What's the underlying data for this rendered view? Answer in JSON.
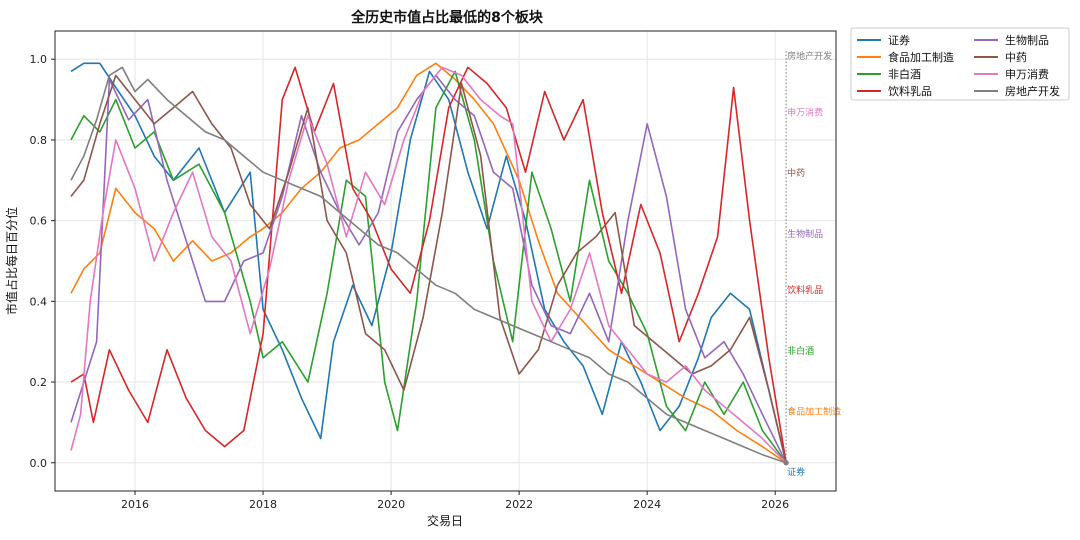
{
  "chart_data": {
    "type": "line",
    "title": "全历史市值占比最低的8个板块",
    "xlabel": "交易日",
    "ylabel": "市值占比每日百分位",
    "xlim": [
      2014.75,
      2026.95
    ],
    "ylim": [
      -0.07,
      1.07
    ],
    "x_ticks": [
      2016,
      2018,
      2020,
      2022,
      2024,
      2026
    ],
    "x_tick_labels": [
      "2016",
      "2018",
      "2020",
      "2022",
      "2024",
      "2026"
    ],
    "y_ticks": [
      0.0,
      0.2,
      0.4,
      0.6,
      0.8,
      1.0
    ],
    "y_tick_labels": [
      "0.0",
      "0.2",
      "0.4",
      "0.6",
      "0.8",
      "1.0"
    ],
    "grid": true,
    "legend_position": "outside-top-right",
    "end_annotation_x": 2026.17,
    "series": [
      {
        "name": "证券",
        "color": "#1f77b4",
        "end_label": "证券",
        "end_label_y": -0.02,
        "x": [
          2015.0,
          2015.2,
          2015.45,
          2015.7,
          2016.0,
          2016.3,
          2016.6,
          2017.0,
          2017.4,
          2017.8,
          2018.0,
          2018.3,
          2018.6,
          2018.9,
          2019.1,
          2019.4,
          2019.7,
          2020.0,
          2020.3,
          2020.6,
          2020.9,
          2021.2,
          2021.5,
          2021.8,
          2022.1,
          2022.4,
          2022.7,
          2023.0,
          2023.3,
          2023.6,
          2023.9,
          2024.2,
          2024.5,
          2024.8,
          2025.0,
          2025.3,
          2025.6,
          2025.9,
          2026.17
        ],
        "y": [
          0.97,
          0.99,
          0.99,
          0.93,
          0.86,
          0.76,
          0.7,
          0.78,
          0.62,
          0.72,
          0.38,
          0.28,
          0.16,
          0.06,
          0.3,
          0.44,
          0.34,
          0.52,
          0.8,
          0.97,
          0.9,
          0.72,
          0.58,
          0.76,
          0.6,
          0.38,
          0.3,
          0.24,
          0.12,
          0.3,
          0.2,
          0.08,
          0.14,
          0.26,
          0.36,
          0.42,
          0.38,
          0.18,
          0.0
        ]
      },
      {
        "name": "食品加工制造",
        "color": "#ff7f0e",
        "end_label": "食品加工制造",
        "end_label_y": 0.13,
        "x": [
          2015.0,
          2015.2,
          2015.45,
          2015.7,
          2016.0,
          2016.3,
          2016.6,
          2016.9,
          2017.2,
          2017.5,
          2017.8,
          2018.0,
          2018.3,
          2018.6,
          2018.9,
          2019.2,
          2019.5,
          2019.8,
          2020.1,
          2020.4,
          2020.7,
          2021.0,
          2021.3,
          2021.6,
          2022.0,
          2022.3,
          2022.6,
          2023.0,
          2023.4,
          2023.8,
          2024.2,
          2024.6,
          2025.0,
          2025.4,
          2025.8,
          2026.17
        ],
        "y": [
          0.42,
          0.48,
          0.52,
          0.68,
          0.62,
          0.58,
          0.5,
          0.55,
          0.5,
          0.52,
          0.56,
          0.58,
          0.62,
          0.68,
          0.72,
          0.78,
          0.8,
          0.84,
          0.88,
          0.96,
          0.99,
          0.95,
          0.9,
          0.84,
          0.7,
          0.55,
          0.42,
          0.35,
          0.28,
          0.24,
          0.2,
          0.16,
          0.13,
          0.08,
          0.04,
          0.0
        ]
      },
      {
        "name": "非白酒",
        "color": "#2ca02c",
        "end_label": "非白酒",
        "end_label_y": 0.28,
        "x": [
          2015.0,
          2015.2,
          2015.45,
          2015.7,
          2016.0,
          2016.3,
          2016.6,
          2017.0,
          2017.4,
          2017.8,
          2018.0,
          2018.3,
          2018.7,
          2019.0,
          2019.3,
          2019.6,
          2019.9,
          2020.1,
          2020.4,
          2020.7,
          2021.0,
          2021.3,
          2021.6,
          2021.9,
          2022.2,
          2022.5,
          2022.8,
          2023.1,
          2023.4,
          2023.7,
          2024.0,
          2024.3,
          2024.6,
          2024.9,
          2025.2,
          2025.5,
          2025.8,
          2026.17
        ],
        "y": [
          0.8,
          0.86,
          0.82,
          0.9,
          0.78,
          0.82,
          0.7,
          0.74,
          0.62,
          0.4,
          0.26,
          0.3,
          0.2,
          0.42,
          0.7,
          0.66,
          0.2,
          0.08,
          0.4,
          0.88,
          0.97,
          0.8,
          0.5,
          0.3,
          0.72,
          0.58,
          0.4,
          0.7,
          0.5,
          0.42,
          0.32,
          0.14,
          0.08,
          0.2,
          0.12,
          0.2,
          0.08,
          0.0
        ]
      },
      {
        "name": "饮料乳品",
        "color": "#d62728",
        "end_label": "饮料乳品",
        "end_label_y": 0.43,
        "x": [
          2015.0,
          2015.2,
          2015.35,
          2015.6,
          2015.9,
          2016.2,
          2016.5,
          2016.8,
          2017.1,
          2017.4,
          2017.7,
          2018.0,
          2018.3,
          2018.5,
          2018.8,
          2019.1,
          2019.4,
          2019.7,
          2020.0,
          2020.3,
          2020.6,
          2020.9,
          2021.2,
          2021.5,
          2021.8,
          2022.1,
          2022.4,
          2022.7,
          2023.0,
          2023.3,
          2023.6,
          2023.9,
          2024.2,
          2024.5,
          2024.8,
          2025.1,
          2025.35,
          2025.6,
          2025.9,
          2026.17
        ],
        "y": [
          0.2,
          0.22,
          0.1,
          0.28,
          0.18,
          0.1,
          0.28,
          0.16,
          0.08,
          0.04,
          0.08,
          0.32,
          0.9,
          0.98,
          0.82,
          0.94,
          0.68,
          0.6,
          0.48,
          0.42,
          0.6,
          0.88,
          0.98,
          0.94,
          0.88,
          0.72,
          0.92,
          0.8,
          0.9,
          0.62,
          0.42,
          0.64,
          0.52,
          0.3,
          0.42,
          0.56,
          0.93,
          0.6,
          0.26,
          0.0
        ]
      },
      {
        "name": "生物制品",
        "color": "#9467bd",
        "end_label": "生物制品",
        "end_label_y": 0.57,
        "x": [
          2015.0,
          2015.2,
          2015.4,
          2015.6,
          2015.9,
          2016.2,
          2016.5,
          2016.8,
          2017.1,
          2017.4,
          2017.7,
          2018.0,
          2018.3,
          2018.6,
          2018.9,
          2019.2,
          2019.5,
          2019.8,
          2020.1,
          2020.4,
          2020.7,
          2021.0,
          2021.3,
          2021.6,
          2021.9,
          2022.2,
          2022.5,
          2022.8,
          2023.1,
          2023.4,
          2023.7,
          2024.0,
          2024.3,
          2024.6,
          2024.9,
          2025.2,
          2025.5,
          2025.8,
          2026.17
        ],
        "y": [
          0.1,
          0.2,
          0.3,
          0.95,
          0.85,
          0.9,
          0.7,
          0.55,
          0.4,
          0.4,
          0.5,
          0.52,
          0.66,
          0.86,
          0.72,
          0.62,
          0.54,
          0.62,
          0.82,
          0.9,
          0.96,
          0.9,
          0.86,
          0.72,
          0.68,
          0.44,
          0.34,
          0.32,
          0.42,
          0.3,
          0.6,
          0.84,
          0.66,
          0.38,
          0.26,
          0.3,
          0.22,
          0.12,
          0.0
        ]
      },
      {
        "name": "中药",
        "color": "#8c564b",
        "end_label": "中药",
        "end_label_y": 0.72,
        "x": [
          2015.0,
          2015.2,
          2015.45,
          2015.7,
          2016.0,
          2016.3,
          2016.6,
          2016.9,
          2017.2,
          2017.5,
          2017.8,
          2018.1,
          2018.4,
          2018.7,
          2019.0,
          2019.3,
          2019.6,
          2019.9,
          2020.2,
          2020.5,
          2020.8,
          2021.1,
          2021.4,
          2021.7,
          2022.0,
          2022.3,
          2022.6,
          2022.9,
          2023.2,
          2023.5,
          2023.8,
          2024.1,
          2024.4,
          2024.7,
          2025.0,
          2025.3,
          2025.6,
          2025.9,
          2026.17
        ],
        "y": [
          0.66,
          0.7,
          0.84,
          0.96,
          0.9,
          0.84,
          0.88,
          0.92,
          0.84,
          0.78,
          0.64,
          0.58,
          0.72,
          0.88,
          0.6,
          0.52,
          0.32,
          0.28,
          0.18,
          0.36,
          0.62,
          0.94,
          0.76,
          0.36,
          0.22,
          0.28,
          0.44,
          0.52,
          0.56,
          0.62,
          0.34,
          0.3,
          0.26,
          0.22,
          0.24,
          0.28,
          0.36,
          0.18,
          0.0
        ]
      },
      {
        "name": "申万消费",
        "color": "#e377c2",
        "end_label": "申万消费",
        "end_label_y": 0.87,
        "x": [
          2015.0,
          2015.15,
          2015.3,
          2015.5,
          2015.7,
          2016.0,
          2016.3,
          2016.6,
          2016.9,
          2017.2,
          2017.5,
          2017.8,
          2018.1,
          2018.4,
          2018.7,
          2019.0,
          2019.3,
          2019.6,
          2019.9,
          2020.2,
          2020.5,
          2020.8,
          2021.1,
          2021.4,
          2021.7,
          2021.9,
          2022.2,
          2022.5,
          2022.8,
          2023.1,
          2023.4,
          2023.7,
          2024.0,
          2024.3,
          2024.6,
          2024.9,
          2025.2,
          2025.5,
          2025.8,
          2026.17
        ],
        "y": [
          0.03,
          0.12,
          0.4,
          0.62,
          0.8,
          0.68,
          0.5,
          0.62,
          0.72,
          0.56,
          0.5,
          0.32,
          0.48,
          0.7,
          0.86,
          0.74,
          0.56,
          0.72,
          0.64,
          0.8,
          0.92,
          0.98,
          0.96,
          0.9,
          0.86,
          0.84,
          0.4,
          0.3,
          0.38,
          0.52,
          0.34,
          0.28,
          0.22,
          0.2,
          0.24,
          0.18,
          0.14,
          0.1,
          0.06,
          0.0
        ]
      },
      {
        "name": "房地产开发",
        "color": "#7f7f7f",
        "end_label": "房地产开发",
        "end_label_y": 1.01,
        "x": [
          2015.0,
          2015.2,
          2015.4,
          2015.6,
          2015.8,
          2016.0,
          2016.2,
          2016.5,
          2016.8,
          2017.1,
          2017.4,
          2017.7,
          2018.0,
          2018.3,
          2018.6,
          2018.9,
          2019.2,
          2019.5,
          2019.8,
          2020.1,
          2020.4,
          2020.7,
          2021.0,
          2021.3,
          2021.6,
          2021.9,
          2022.2,
          2022.5,
          2022.8,
          2023.1,
          2023.4,
          2023.7,
          2024.0,
          2024.3,
          2024.6,
          2024.9,
          2025.2,
          2025.5,
          2025.8,
          2026.17
        ],
        "y": [
          0.7,
          0.76,
          0.85,
          0.96,
          0.98,
          0.92,
          0.95,
          0.9,
          0.86,
          0.82,
          0.8,
          0.76,
          0.72,
          0.7,
          0.68,
          0.66,
          0.62,
          0.58,
          0.54,
          0.52,
          0.48,
          0.44,
          0.42,
          0.38,
          0.36,
          0.34,
          0.32,
          0.3,
          0.28,
          0.26,
          0.22,
          0.2,
          0.16,
          0.12,
          0.1,
          0.08,
          0.06,
          0.04,
          0.02,
          0.0
        ]
      }
    ]
  }
}
